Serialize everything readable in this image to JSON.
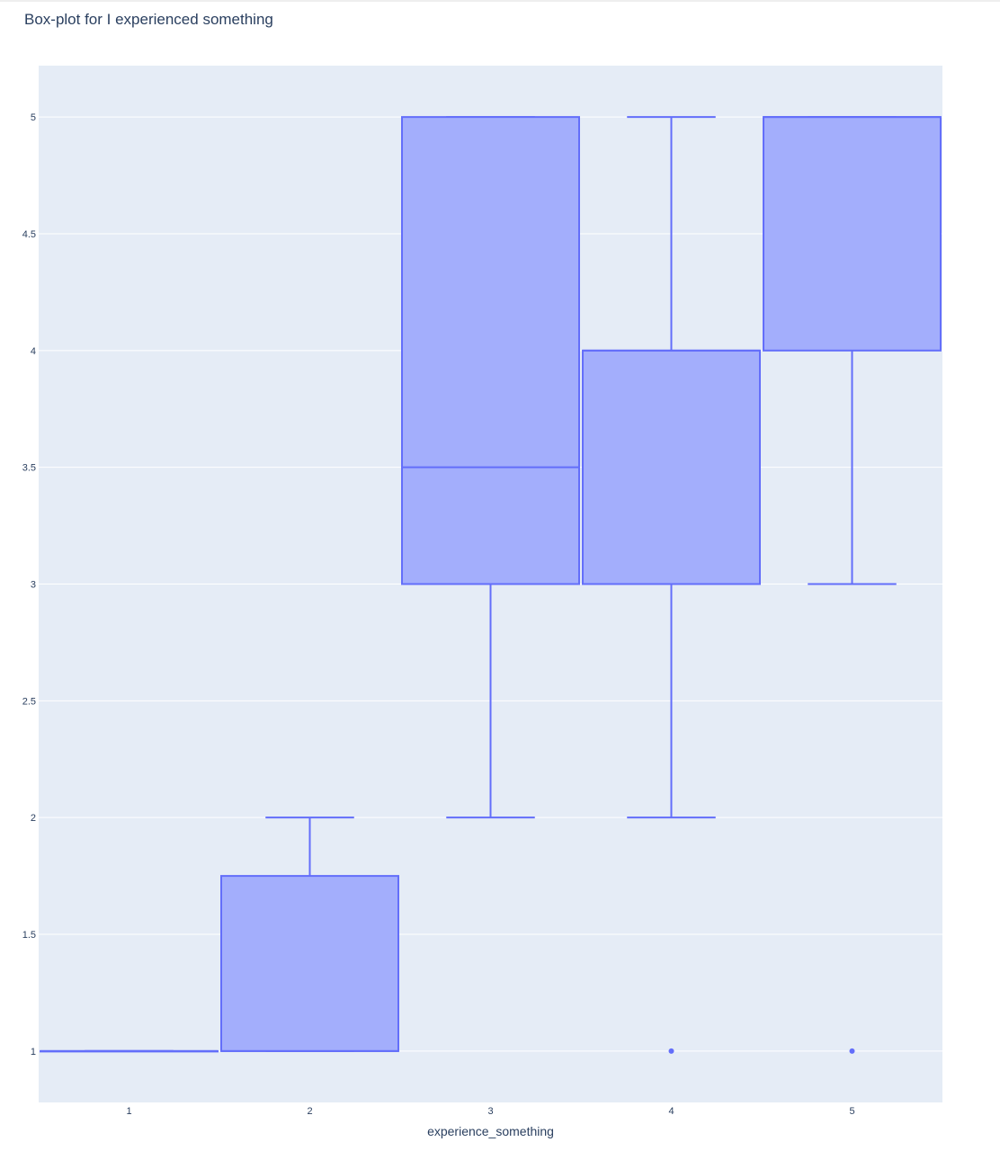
{
  "chart_data": {
    "type": "box",
    "title": "Box-plot for I experienced something",
    "xlabel": "experience_something",
    "ylabel": "",
    "categories": [
      "1",
      "2",
      "3",
      "4",
      "5"
    ],
    "yticks": [
      "1",
      "1.5",
      "2",
      "2.5",
      "3",
      "3.5",
      "4",
      "4.5",
      "5"
    ],
    "ylim": [
      0.78,
      5.22
    ],
    "grid": true,
    "legend": "none",
    "colors": {
      "line": "#636efa",
      "fill": "#a3aefc",
      "plot_bg": "#e5ecf6",
      "grid": "#ffffff",
      "text": "#2a3f5f"
    },
    "boxes": [
      {
        "category": "1",
        "lowerfence": 1,
        "q1": 1,
        "median": 1,
        "q3": 1,
        "upperfence": 1,
        "outliers": []
      },
      {
        "category": "2",
        "lowerfence": 1,
        "q1": 1,
        "median": 1,
        "q3": 1.75,
        "upperfence": 2,
        "outliers": []
      },
      {
        "category": "3",
        "lowerfence": 2,
        "q1": 3,
        "median": 3.5,
        "q3": 5,
        "upperfence": 5,
        "outliers": []
      },
      {
        "category": "4",
        "lowerfence": 2,
        "q1": 3,
        "median": 4,
        "q3": 4,
        "upperfence": 5,
        "outliers": [
          1
        ]
      },
      {
        "category": "5",
        "lowerfence": 3,
        "q1": 4,
        "median": 5,
        "q3": 5,
        "upperfence": 5,
        "outliers": [
          1
        ]
      }
    ]
  }
}
